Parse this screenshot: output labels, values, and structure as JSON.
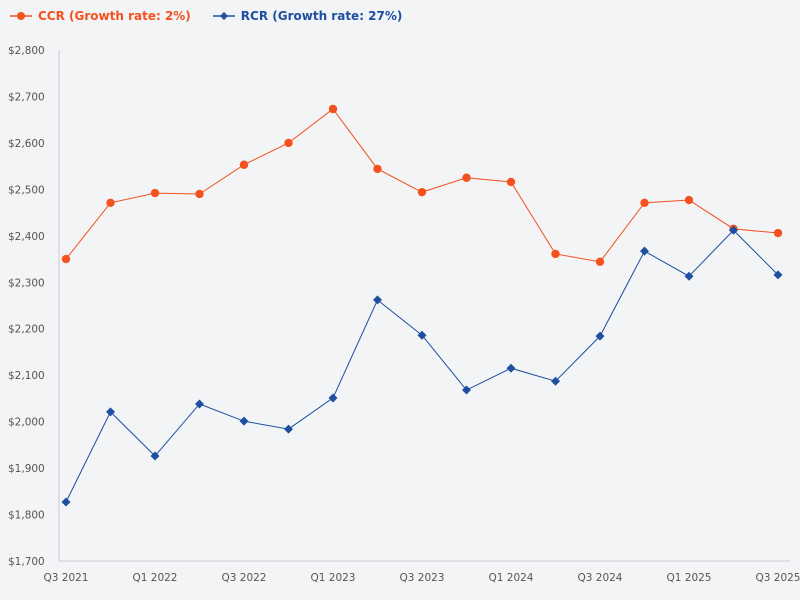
{
  "chart_data": {
    "type": "line",
    "title": "",
    "xlabel": "",
    "ylabel": "",
    "ylim": [
      1700,
      2800
    ],
    "yticks": [
      "$1,700",
      "$1,800",
      "$1,900",
      "$2,000",
      "$2,100",
      "$2,200",
      "$2,300",
      "$2,400",
      "$2,500",
      "$2,600",
      "$2,700",
      "$2,800"
    ],
    "grid": false,
    "legend_position": "top-left",
    "x": [
      "Q3 2021",
      "Q4 2021",
      "Q1 2022",
      "Q2 2022",
      "Q3 2022",
      "Q4 2022",
      "Q1 2023",
      "Q2 2023",
      "Q3 2023",
      "Q4 2023",
      "Q1 2024",
      "Q2 2024",
      "Q3 2024",
      "Q4 2024",
      "Q1 2025",
      "Q2 2025",
      "Q3 2025"
    ],
    "xtick_labels": [
      "Q3 2021",
      "",
      "Q1 2022",
      "",
      "Q3 2022",
      "",
      "Q1 2023",
      "",
      "Q3 2023",
      "",
      "Q1 2024",
      "",
      "Q3 2024",
      "",
      "Q1 2025",
      "",
      "Q3 2025"
    ],
    "series": [
      {
        "name": "CCR (Growth rate: 2%)",
        "color": "#f4511e",
        "marker": "circle",
        "values": [
          2350,
          2471,
          2492,
          2490,
          2553,
          2600,
          2673,
          2544,
          2494,
          2525,
          2516,
          2361,
          2344,
          2471,
          2477,
          2415,
          2406
        ]
      },
      {
        "name": "RCR (Growth rate: 27%)",
        "color": "#1e4fa0",
        "marker": "diamond",
        "values": [
          1827,
          2021,
          1926,
          2038,
          2001,
          1984,
          2051,
          2262,
          2186,
          2068,
          2115,
          2087,
          2184,
          2367,
          2313,
          2412,
          2316
        ]
      }
    ]
  }
}
